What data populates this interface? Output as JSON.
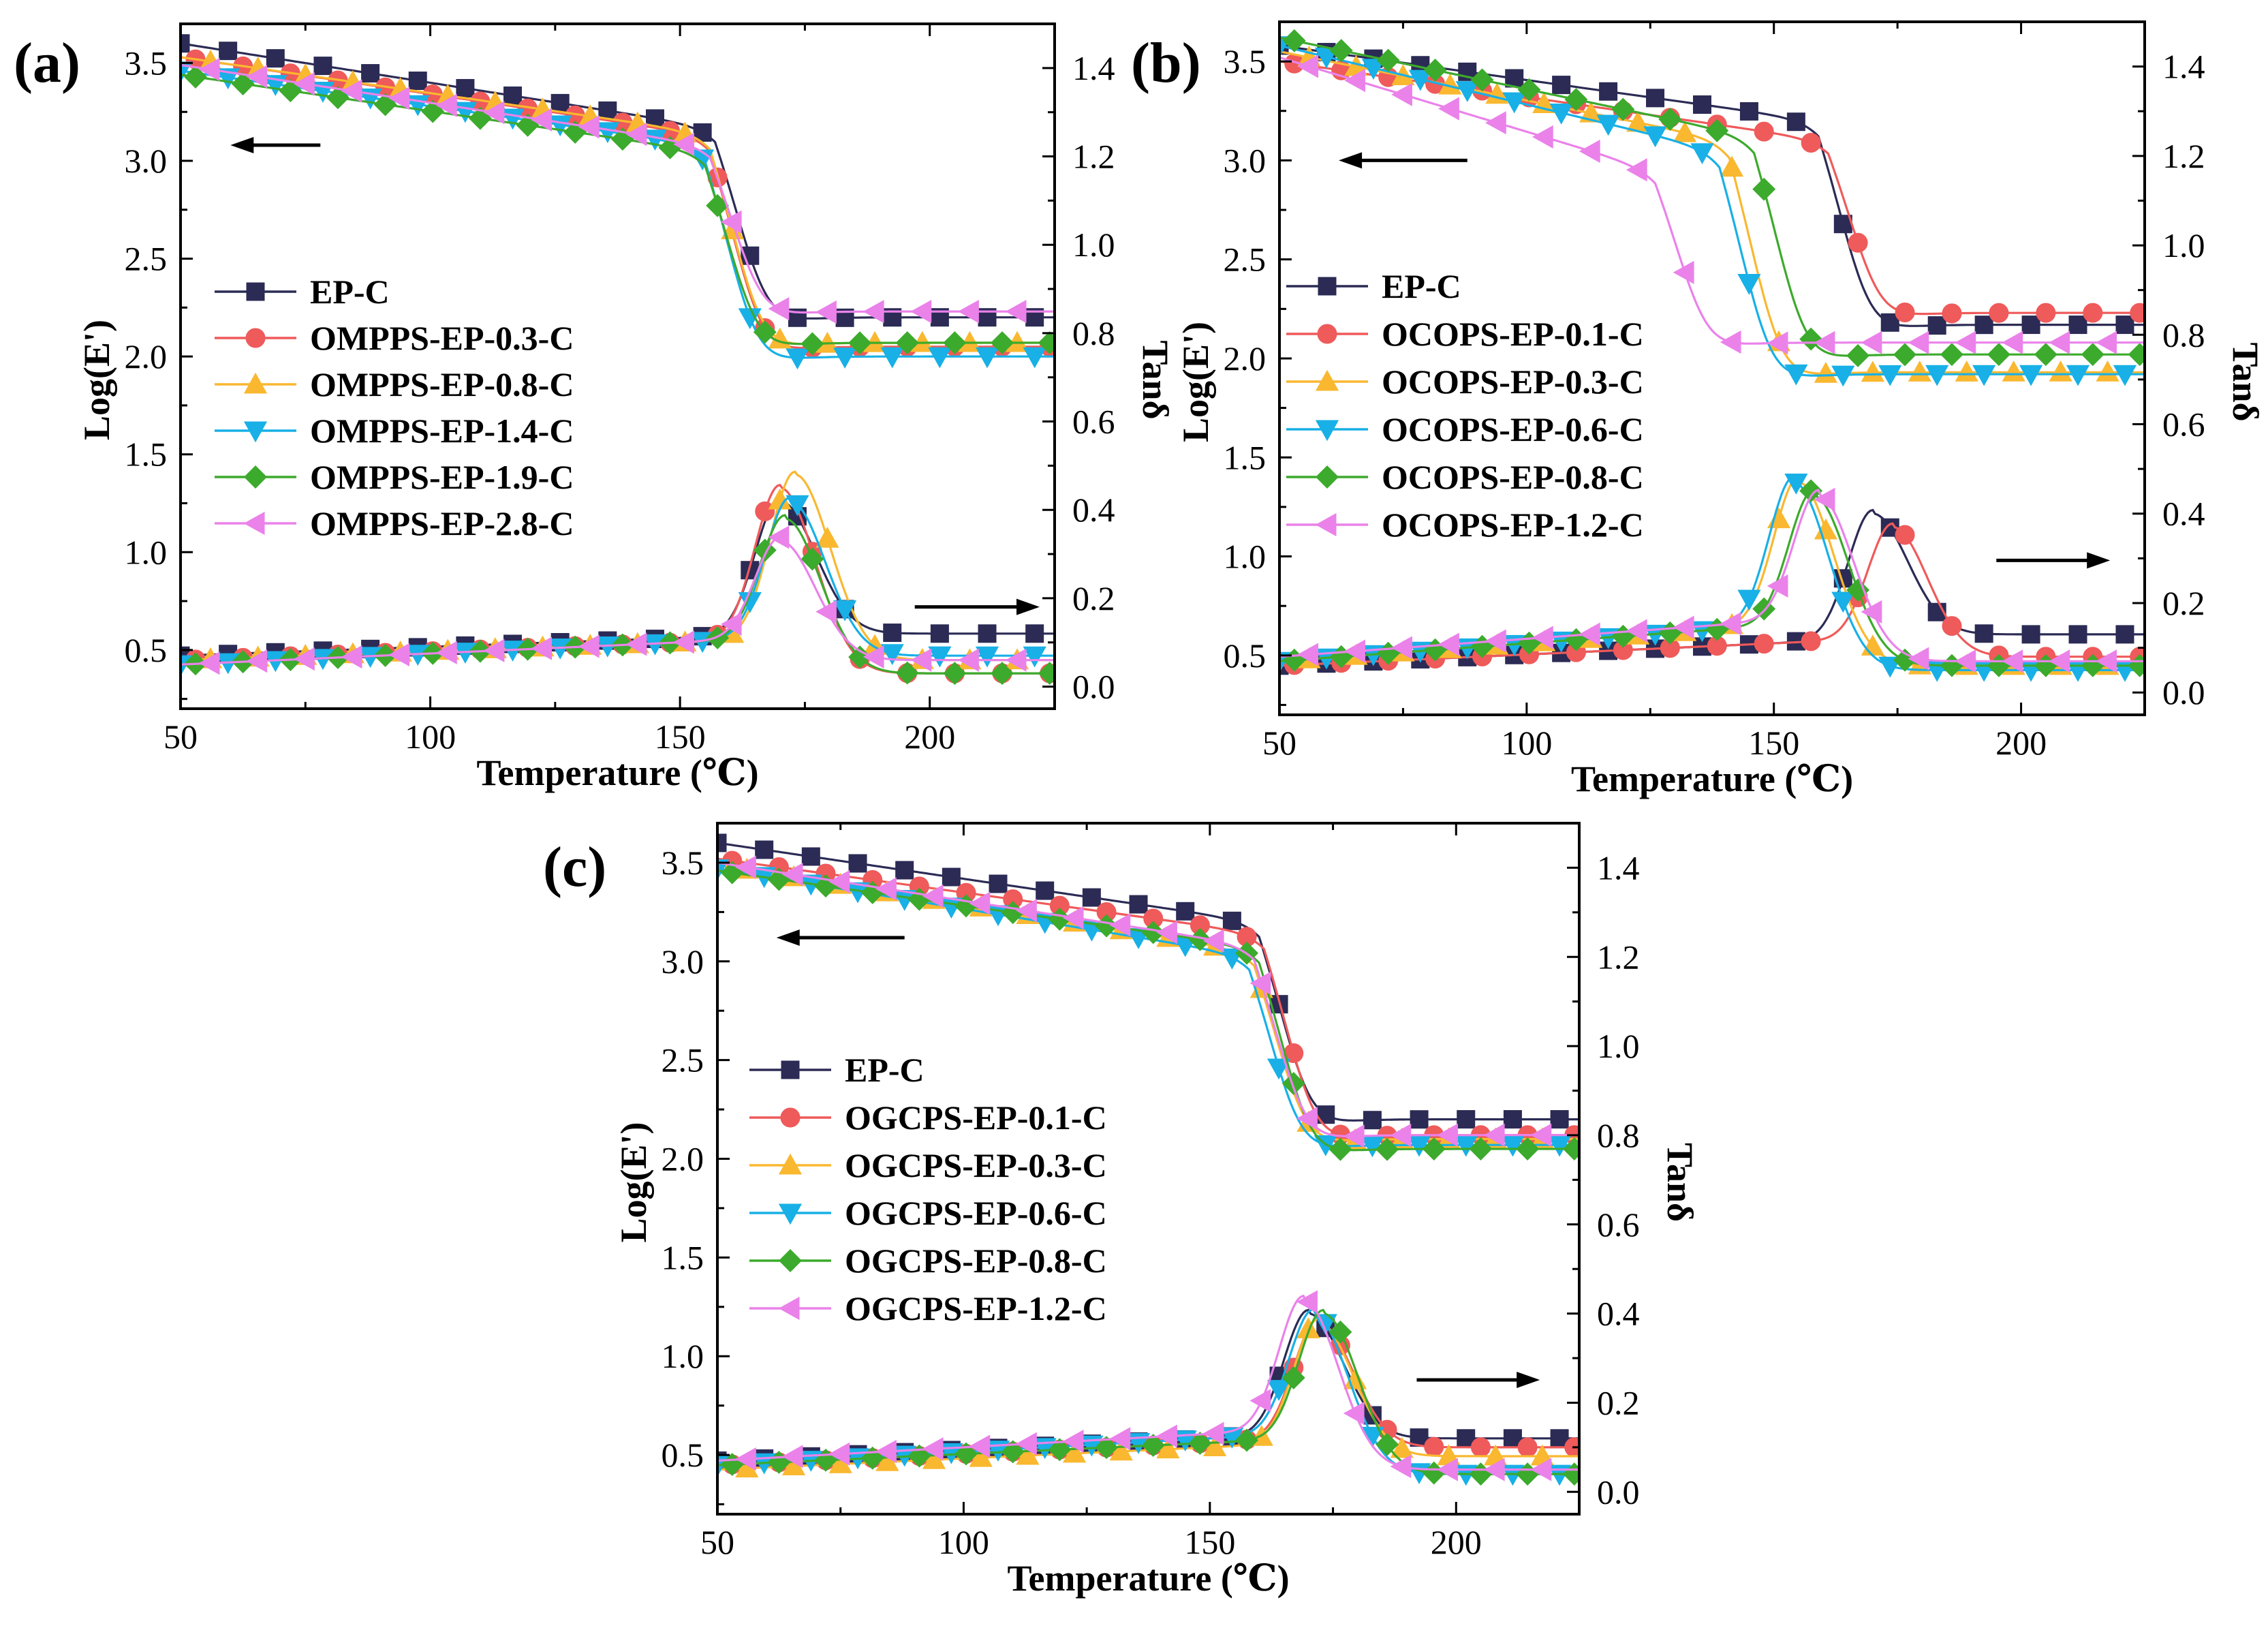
{
  "figure": {
    "colors": {
      "EP": "#2b2b55",
      "s1": "#ef5a5a",
      "s2": "#f9b830",
      "s3": "#18b0e6",
      "s4": "#3caa2c",
      "s5": "#ea82ea"
    },
    "markers": [
      "square",
      "circle",
      "triangle-up",
      "triangle-down",
      "diamond",
      "triangle-left"
    ]
  },
  "chart_data": [
    {
      "type": "line",
      "panel": "(a)",
      "xlabel": "Temperature (℃)",
      "ylabel_left": "Log(E')",
      "ylabel_right": "Tanδ",
      "xlim": [
        50,
        225
      ],
      "ylim_left": [
        0.2,
        3.7
      ],
      "ylim_right": [
        -0.05,
        1.5
      ],
      "xticks": [
        50,
        100,
        150,
        200
      ],
      "yticks_left": [
        0.5,
        1.0,
        1.5,
        2.0,
        2.5,
        3.0,
        3.5
      ],
      "yticks_right": [
        0.0,
        0.2,
        0.4,
        0.6,
        0.8,
        1.0,
        1.2,
        1.4
      ],
      "xtick_labels": [
        "50",
        "100",
        "150",
        "200"
      ],
      "ytick_labels_left": [
        "0.5",
        "1.0",
        "1.5",
        "2.0",
        "2.5",
        "3.0",
        "3.5"
      ],
      "ytick_labels_right": [
        "0.0",
        "0.2",
        "0.4",
        "0.6",
        "0.8",
        "1.0",
        "1.2",
        "1.4"
      ],
      "legend": [
        "EP-C",
        "OMPPS-EP-0.3-C",
        "OMPPS-EP-0.8-C",
        "OMPPS-EP-1.4-C",
        "OMPPS-EP-1.9-C",
        "OMPPS-EP-2.8-C"
      ],
      "arrows": [
        {
          "direction": "left",
          "x1": 78,
          "x2": 60,
          "y_left": 3.08
        },
        {
          "direction": "right",
          "x1": 197,
          "x2": 222,
          "y_left": 0.72
        }
      ],
      "modulus": [
        {
          "start": 3.6,
          "tg": 157,
          "plateau": 2.2,
          "glass": 3.17
        },
        {
          "start": 3.53,
          "tg": 156,
          "plateau": 2.05,
          "glass": 3.13
        },
        {
          "start": 3.53,
          "tg": 156,
          "plateau": 2.07,
          "glass": 3.14
        },
        {
          "start": 3.46,
          "tg": 155,
          "plateau": 2.0,
          "glass": 3.08
        },
        {
          "start": 3.44,
          "tg": 155,
          "plateau": 2.07,
          "glass": 3.05
        },
        {
          "start": 3.49,
          "tg": 156,
          "plateau": 2.23,
          "glass": 3.08
        }
      ],
      "tan_delta": [
        {
          "base": 0.07,
          "slope": 0.0004,
          "peak_t": 170,
          "peak": 0.42,
          "end": 0.12
        },
        {
          "base": 0.06,
          "slope": 0.0004,
          "peak_t": 170,
          "peak": 0.45,
          "end": 0.03
        },
        {
          "base": 0.06,
          "slope": 0.0004,
          "peak_t": 173,
          "peak": 0.48,
          "end": 0.06
        },
        {
          "base": 0.05,
          "slope": 0.0005,
          "peak_t": 172,
          "peak": 0.42,
          "end": 0.07
        },
        {
          "base": 0.05,
          "slope": 0.0005,
          "peak_t": 171,
          "peak": 0.38,
          "end": 0.03
        },
        {
          "base": 0.05,
          "slope": 0.0005,
          "peak_t": 170,
          "peak": 0.33,
          "end": 0.06
        }
      ]
    },
    {
      "type": "line",
      "panel": "(b)",
      "xlabel": "Temperature (℃)",
      "ylabel_left": "Log(E')",
      "ylabel_right": "Tanδ",
      "xlim": [
        50,
        225
      ],
      "ylim_left": [
        0.2,
        3.7
      ],
      "ylim_right": [
        -0.05,
        1.5
      ],
      "xticks": [
        50,
        100,
        150,
        200
      ],
      "yticks_left": [
        0.5,
        1.0,
        1.5,
        2.0,
        2.5,
        3.0,
        3.5
      ],
      "yticks_right": [
        0.0,
        0.2,
        0.4,
        0.6,
        0.8,
        1.0,
        1.2,
        1.4
      ],
      "xtick_labels": [
        "50",
        "100",
        "150",
        "200"
      ],
      "ytick_labels_left": [
        "0.5",
        "1.0",
        "1.5",
        "2.0",
        "2.5",
        "3.0",
        "3.5"
      ],
      "ytick_labels_right": [
        "0.0",
        "0.2",
        "0.4",
        "0.6",
        "0.8",
        "1.0",
        "1.2",
        "1.4"
      ],
      "legend": [
        "EP-C",
        "OCOPS-EP-0.1-C",
        "OCOPS-EP-0.3-C",
        "OCOPS-EP-0.6-C",
        "OCOPS-EP-0.8-C",
        "OCOPS-EP-1.2-C"
      ],
      "arrows": [
        {
          "direction": "left",
          "x1": 88,
          "x2": 62,
          "y_left": 3.0
        },
        {
          "direction": "right",
          "x1": 195,
          "x2": 218,
          "y_left": 0.98
        }
      ],
      "modulus": [
        {
          "start": 3.58,
          "tg": 159,
          "plateau": 2.17,
          "glass": 3.2
        },
        {
          "start": 3.5,
          "tg": 161,
          "plateau": 2.23,
          "glass": 3.1
        },
        {
          "start": 3.55,
          "tg": 141,
          "plateau": 1.93,
          "glass": 3.1
        },
        {
          "start": 3.58,
          "tg": 139,
          "plateau": 1.92,
          "glass": 3.05
        },
        {
          "start": 3.62,
          "tg": 146,
          "plateau": 2.02,
          "glass": 3.12
        },
        {
          "start": 3.52,
          "tg": 126,
          "plateau": 2.08,
          "glass": 2.95
        }
      ],
      "tan_delta": [
        {
          "base": 0.06,
          "slope": 0.0005,
          "peak_t": 170,
          "peak": 0.4,
          "end": 0.13
        },
        {
          "base": 0.06,
          "slope": 0.0005,
          "peak_t": 174,
          "peak": 0.37,
          "end": 0.08
        },
        {
          "base": 0.07,
          "slope": 0.0008,
          "peak_t": 155,
          "peak": 0.47,
          "end": 0.06
        },
        {
          "base": 0.07,
          "slope": 0.0008,
          "peak_t": 154,
          "peak": 0.47,
          "end": 0.05
        },
        {
          "base": 0.07,
          "slope": 0.0008,
          "peak_t": 158,
          "peak": 0.44,
          "end": 0.06
        },
        {
          "base": 0.08,
          "slope": 0.0008,
          "peak_t": 159,
          "peak": 0.44,
          "end": 0.07
        }
      ]
    },
    {
      "type": "line",
      "panel": "(c)",
      "xlabel": "Temperature (℃)",
      "ylabel_left": "Log(E')",
      "ylabel_right": "Tanδ",
      "xlim": [
        50,
        225
      ],
      "ylim_left": [
        0.2,
        3.7
      ],
      "ylim_right": [
        -0.05,
        1.5
      ],
      "xticks": [
        50,
        100,
        150,
        200
      ],
      "yticks_left": [
        0.5,
        1.0,
        1.5,
        2.0,
        2.5,
        3.0,
        3.5
      ],
      "yticks_right": [
        0.0,
        0.2,
        0.4,
        0.6,
        0.8,
        1.0,
        1.2,
        1.4
      ],
      "xtick_labels": [
        "50",
        "100",
        "150",
        "200"
      ],
      "ytick_labels_left": [
        "0.5",
        "1.0",
        "1.5",
        "2.0",
        "2.5",
        "3.0",
        "3.5"
      ],
      "ytick_labels_right": [
        "0.0",
        "0.2",
        "0.4",
        "0.6",
        "0.8",
        "1.0",
        "1.2",
        "1.4"
      ],
      "legend": [
        "EP-C",
        "OGCPS-EP-0.1-C",
        "OGCPS-EP-0.3-C",
        "OGCPS-EP-0.6-C",
        "OGCPS-EP-0.8-C",
        "OGCPS-EP-1.2-C"
      ],
      "arrows": [
        {
          "direction": "left",
          "x1": 88,
          "x2": 62,
          "y_left": 3.12
        },
        {
          "direction": "right",
          "x1": 192,
          "x2": 217,
          "y_left": 0.88
        }
      ],
      "modulus": [
        {
          "start": 3.6,
          "tg": 160,
          "plateau": 2.2,
          "glass": 3.2
        },
        {
          "start": 3.52,
          "tg": 161,
          "plateau": 2.12,
          "glass": 3.14
        },
        {
          "start": 3.49,
          "tg": 159,
          "plateau": 2.1,
          "glass": 3.05
        },
        {
          "start": 3.47,
          "tg": 158,
          "plateau": 2.07,
          "glass": 3.03
        },
        {
          "start": 3.46,
          "tg": 160,
          "plateau": 2.05,
          "glass": 3.07
        },
        {
          "start": 3.5,
          "tg": 159,
          "plateau": 2.12,
          "glass": 3.08
        }
      ],
      "tan_delta": [
        {
          "base": 0.07,
          "slope": 0.0005,
          "peak_t": 170,
          "peak": 0.4,
          "end": 0.12
        },
        {
          "base": 0.06,
          "slope": 0.0005,
          "peak_t": 172,
          "peak": 0.38,
          "end": 0.1
        },
        {
          "base": 0.05,
          "slope": 0.0005,
          "peak_t": 172,
          "peak": 0.38,
          "end": 0.08
        },
        {
          "base": 0.06,
          "slope": 0.0006,
          "peak_t": 171,
          "peak": 0.4,
          "end": 0.04
        },
        {
          "base": 0.06,
          "slope": 0.0005,
          "peak_t": 173,
          "peak": 0.4,
          "end": 0.04
        },
        {
          "base": 0.07,
          "slope": 0.0006,
          "peak_t": 169,
          "peak": 0.43,
          "end": 0.05
        }
      ]
    }
  ]
}
